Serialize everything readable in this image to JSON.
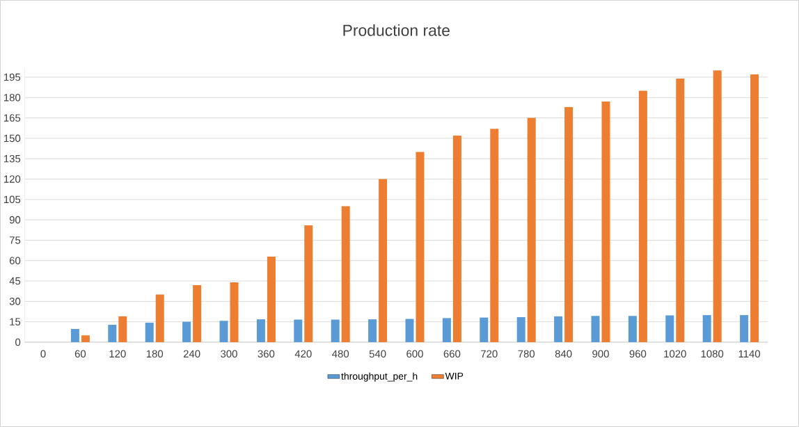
{
  "chart_data": {
    "type": "bar",
    "title": "Production rate",
    "categories": [
      "0",
      "60",
      "120",
      "180",
      "240",
      "300",
      "360",
      "420",
      "480",
      "540",
      "600",
      "660",
      "720",
      "780",
      "840",
      "900",
      "960",
      "1020",
      "1080",
      "1140"
    ],
    "series": [
      {
        "name": "throughput_per_h",
        "color": "#5b9bd5",
        "values": [
          null,
          9.7,
          12.8,
          14.3,
          15.0,
          15.7,
          16.8,
          16.6,
          16.6,
          16.8,
          17.1,
          17.7,
          18.1,
          18.4,
          19.0,
          19.3,
          19.3,
          19.7,
          19.9,
          19.9
        ]
      },
      {
        "name": "WIP",
        "color": "#ed7d31",
        "values": [
          null,
          5,
          19,
          35,
          42,
          44,
          63,
          86,
          100,
          120,
          140,
          152,
          157,
          165,
          173,
          177,
          185,
          194,
          200,
          197
        ]
      }
    ],
    "ylim": [
      0,
      202
    ],
    "yticks": [
      0,
      15,
      30,
      45,
      60,
      75,
      90,
      105,
      120,
      135,
      150,
      165,
      180,
      195
    ],
    "grid": "y",
    "legend": "bottom"
  }
}
